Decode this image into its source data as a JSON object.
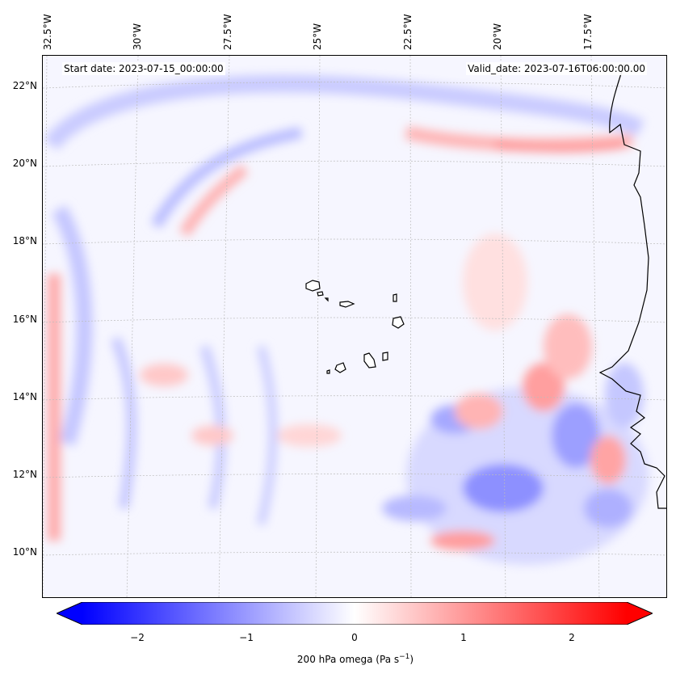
{
  "map": {
    "start_date": "Start date: 2023-07-15_00:00:00",
    "valid_date": "Valid_date: 2023-07-16T06:00:00.00",
    "longitude_labels": [
      "32.5°W",
      "30°W",
      "27.5°W",
      "25°W",
      "22.5°W",
      "20°W",
      "17.5°W"
    ],
    "latitude_labels": [
      "22°N",
      "20°N",
      "18°N",
      "16°N",
      "14°N",
      "12°N",
      "10°N"
    ]
  },
  "colorbar": {
    "label_main": "200 hPa omega (Pa s",
    "label_exp": "−1",
    "label_tail": ")",
    "ticks": [
      "−2",
      "−1",
      "0",
      "1",
      "2"
    ],
    "tick_values": [
      -2,
      -1,
      0,
      1,
      2
    ],
    "range": [
      -2.5,
      2.5
    ],
    "colormap": "bwr",
    "colors": {
      "min": "#0000ff",
      "mid": "#ffffff",
      "max": "#ff0000"
    },
    "extend": "both"
  }
}
